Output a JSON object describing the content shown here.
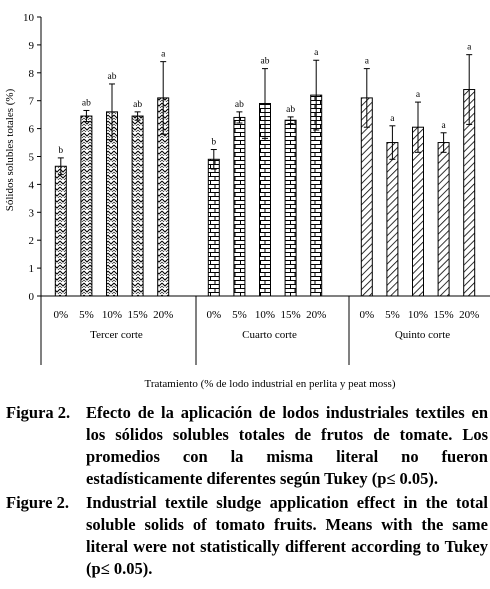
{
  "chart_data": {
    "type": "bar",
    "ylabel": "Sólidos solubles totales (%)",
    "xlabel": "Tratamiento (% de lodo industrial en perlita y peat moss)",
    "ylim": [
      0,
      10
    ],
    "yticks": [
      "0",
      "1",
      "2",
      "3",
      "4",
      "5",
      "6",
      "7",
      "8",
      "9",
      "10"
    ],
    "grid": false,
    "legend": "none",
    "groups": [
      {
        "name": "Tercer corte",
        "pattern": "zigzag",
        "categories": [
          "0%",
          "5%",
          "10%",
          "15%",
          "20%"
        ],
        "values": [
          4.65,
          6.45,
          6.6,
          6.45,
          7.1
        ],
        "errors": [
          0.3,
          0.2,
          1.0,
          0.15,
          1.3
        ],
        "letters": [
          "b",
          "ab",
          "ab",
          "ab",
          "a"
        ]
      },
      {
        "name": "Cuarto corte",
        "pattern": "brick",
        "categories": [
          "0%",
          "5%",
          "10%",
          "15%",
          "20%"
        ],
        "values": [
          4.9,
          6.4,
          6.9,
          6.3,
          7.2
        ],
        "errors": [
          0.35,
          0.2,
          1.25,
          0.12,
          1.25
        ],
        "letters": [
          "b",
          "ab",
          "ab",
          "ab",
          "a"
        ]
      },
      {
        "name": "Quinto corte",
        "pattern": "diagonal",
        "categories": [
          "0%",
          "5%",
          "10%",
          "15%",
          "20%"
        ],
        "values": [
          7.1,
          5.5,
          6.05,
          5.5,
          7.4
        ],
        "errors": [
          1.05,
          0.6,
          0.9,
          0.35,
          1.25
        ],
        "letters": [
          "a",
          "a",
          "a",
          "a",
          "a"
        ]
      }
    ]
  },
  "captions": [
    {
      "label": "Figura 2.",
      "text": "Efecto de la aplicación de lodos industriales textiles en los sólidos solubles totales de frutos de tomate. Los promedios con la misma literal no fueron estadísticamente diferentes según Tukey (p≤ 0.05)."
    },
    {
      "label": "Figure 2.",
      "text": "Industrial textile sludge application effect in the total soluble solids of tomato fruits. Means with the same literal were not statistically different according to Tukey (p≤ 0.05)."
    }
  ]
}
